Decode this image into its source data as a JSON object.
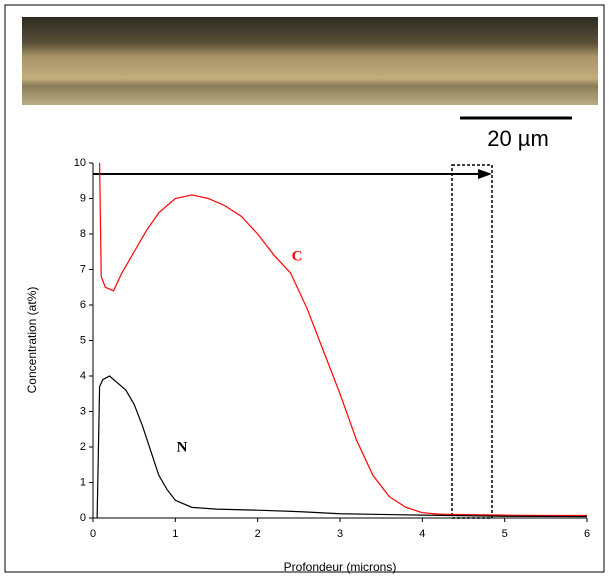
{
  "scale_bar": "20 µm",
  "chart_data": {
    "type": "line",
    "xlabel": "Profondeur (microns)",
    "ylabel": "Concentration (at%)",
    "xlim": [
      0,
      6
    ],
    "xticks": [
      0,
      1,
      2,
      3,
      4,
      5,
      6
    ],
    "ylim": [
      0,
      10
    ],
    "yticks": [
      0,
      1,
      2,
      3,
      4,
      5,
      6,
      7,
      8,
      9,
      10
    ],
    "series": [
      {
        "name": "C",
        "color": "#ff0000",
        "x": [
          0.08,
          0.1,
          0.15,
          0.25,
          0.35,
          0.5,
          0.65,
          0.8,
          1.0,
          1.2,
          1.4,
          1.6,
          1.8,
          2.0,
          2.2,
          2.4,
          2.6,
          2.8,
          3.0,
          3.2,
          3.4,
          3.6,
          3.8,
          4.0,
          4.2,
          4.4,
          5.0,
          5.5,
          6.0
        ],
        "values": [
          10,
          6.8,
          6.5,
          6.4,
          6.9,
          7.5,
          8.1,
          8.6,
          9.0,
          9.1,
          9.0,
          8.8,
          8.5,
          8.0,
          7.4,
          6.9,
          5.9,
          4.7,
          3.5,
          2.2,
          1.2,
          0.6,
          0.3,
          0.15,
          0.11,
          0.1,
          0.08,
          0.07,
          0.07
        ]
      },
      {
        "name": "N",
        "color": "#000000",
        "x": [
          0.05,
          0.08,
          0.12,
          0.2,
          0.3,
          0.4,
          0.5,
          0.6,
          0.7,
          0.8,
          0.9,
          1.0,
          1.2,
          1.5,
          2.0,
          2.5,
          3.0,
          3.5,
          4.0,
          5.0,
          6.0
        ],
        "values": [
          0,
          3.7,
          3.9,
          4.0,
          3.8,
          3.6,
          3.2,
          2.6,
          1.9,
          1.2,
          0.8,
          0.5,
          0.3,
          0.25,
          0.22,
          0.18,
          0.12,
          0.1,
          0.08,
          0.05,
          0.04
        ]
      }
    ]
  }
}
